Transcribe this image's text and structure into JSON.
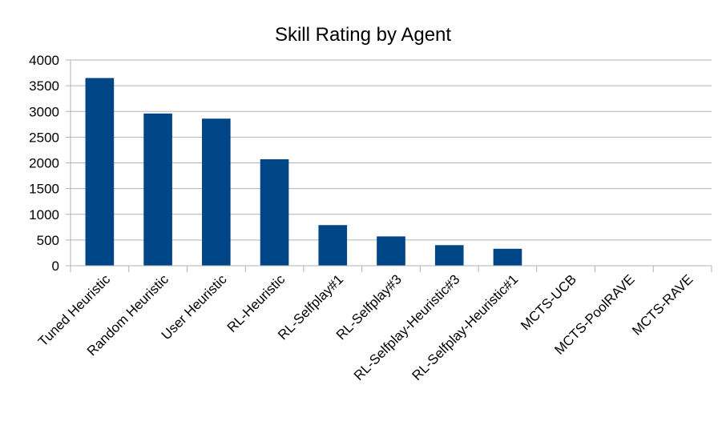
{
  "chart_data": {
    "type": "bar",
    "title": "Skill Rating by Agent",
    "xlabel": "",
    "ylabel": "",
    "categories": [
      "Tuned Heuristic",
      "Random Heuristic",
      "User Heuristic",
      "RL-Heuristic",
      "RL-Selfplay#1",
      "RL-Selfplay#3",
      "RL-Selfplay-Heuristic#3",
      "RL-Selfplay-Heuristic#1",
      "MCTS-UCB",
      "MCTS-PoolRAVE",
      "MCTS-RAVE"
    ],
    "values": [
      3650,
      2960,
      2860,
      2070,
      790,
      570,
      400,
      330,
      0,
      0,
      0
    ],
    "ylim": [
      0,
      4000
    ],
    "yticks": [
      "0",
      "500",
      "1000",
      "1500",
      "2000",
      "2500",
      "3000",
      "3500",
      "4000"
    ],
    "grid": true,
    "legend": "none",
    "bar_color": "#004586"
  }
}
